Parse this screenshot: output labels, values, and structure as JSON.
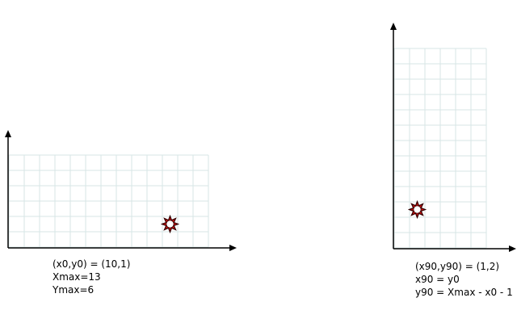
{
  "colors": {
    "background": "#ffffff",
    "grid": "#d7e6e6",
    "axis": "#000000",
    "marker_fill": "#cc1111",
    "marker_outline": "#330000",
    "marker_center": "#ffffff",
    "text": "#000000"
  },
  "icons": {
    "marker": "sun-marker-icon",
    "arrowhead": "arrowhead-icon"
  },
  "left_panel": {
    "grid": {
      "columns": 13,
      "rows": 6
    },
    "marker": {
      "col": 10,
      "row": 1
    },
    "caption": {
      "line1": "(x0,y0) = (10,1)",
      "line2": "Xmax=13",
      "line3": "Ymax=6"
    }
  },
  "right_panel": {
    "grid": {
      "columns": 6,
      "rows": 13
    },
    "marker": {
      "col": 1,
      "row": 2
    },
    "caption": {
      "line1": "(x90,y90) = (1,2)",
      "line2": "x90 = y0",
      "line3": "y90 = Xmax - x0 - 1"
    }
  }
}
